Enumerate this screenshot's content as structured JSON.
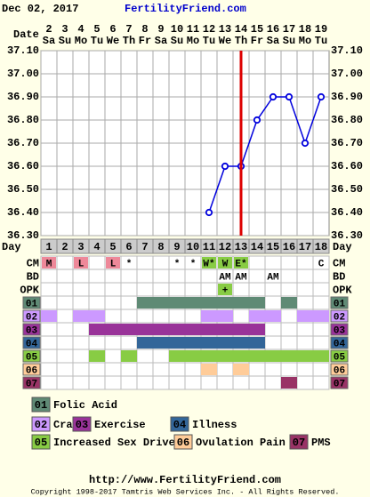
{
  "chart_data": {
    "type": "line",
    "title_date": "Dec 02, 2017",
    "site": "FertilityFriend.com",
    "date_label": "Date",
    "categories": [
      "2",
      "3",
      "4",
      "5",
      "6",
      "7",
      "8",
      "9",
      "10",
      "11",
      "12",
      "13",
      "14",
      "15",
      "16",
      "17",
      "18",
      "19"
    ],
    "weekdays": [
      "Sa",
      "Su",
      "Mo",
      "Tu",
      "We",
      "Th",
      "Fr",
      "Sa",
      "Su",
      "Mo",
      "Tu",
      "We",
      "Th",
      "Fr",
      "Sa",
      "Su",
      "Mo",
      "Tu"
    ],
    "values": [
      null,
      null,
      null,
      null,
      null,
      null,
      null,
      null,
      null,
      null,
      36.4,
      36.6,
      36.6,
      36.8,
      36.9,
      36.9,
      36.7,
      36.9
    ],
    "color": "#0000dd",
    "ylim": [
      36.3,
      37.1
    ],
    "yticks": [
      {
        "value": 36.3,
        "label": "36.30"
      },
      {
        "value": 36.4,
        "label": "36.40"
      },
      {
        "value": 36.5,
        "label": "36.50"
      },
      {
        "value": 36.6,
        "label": "36.60"
      },
      {
        "value": 36.7,
        "label": "36.70"
      },
      {
        "value": 36.8,
        "label": "36.80"
      },
      {
        "value": 36.9,
        "label": "36.90"
      },
      {
        "value": 37.0,
        "label": "37.00"
      },
      {
        "value": 37.1,
        "label": "37.10"
      }
    ],
    "grid": true,
    "ovulation_day": 13,
    "ovulation_color": "#dd0000"
  },
  "table": {
    "day_label": "Day",
    "days": [
      1,
      2,
      3,
      4,
      5,
      6,
      7,
      8,
      9,
      10,
      11,
      12,
      13,
      14,
      15,
      16,
      17,
      18
    ],
    "rows": [
      {
        "label": "CM",
        "cells": [
          "M",
          null,
          "L",
          null,
          "L",
          "*",
          null,
          null,
          "*",
          "*",
          "W*",
          "W",
          "E*",
          null,
          null,
          null,
          null,
          "C"
        ],
        "cell_colors": [
          "#ee8899",
          null,
          "#ee8899",
          null,
          "#ee8899",
          null,
          null,
          null,
          null,
          null,
          "#88cc44",
          "#88cc44",
          "#88cc44",
          null,
          null,
          null,
          null,
          null
        ]
      },
      {
        "label": "BD",
        "cells": [
          null,
          null,
          null,
          null,
          null,
          null,
          null,
          null,
          null,
          null,
          null,
          "AM",
          "AM",
          null,
          "AM",
          null,
          null,
          null
        ]
      },
      {
        "label": "OPK",
        "cells": [
          null,
          null,
          null,
          null,
          null,
          null,
          null,
          null,
          null,
          null,
          null,
          "+",
          null,
          null,
          null,
          null,
          null,
          null
        ],
        "cell_colors": [
          null,
          null,
          null,
          null,
          null,
          null,
          null,
          null,
          null,
          null,
          null,
          "#88cc44",
          null,
          null,
          null,
          null,
          null,
          null
        ]
      }
    ]
  },
  "symptoms": [
    {
      "code": "01",
      "name": "Folic Acid",
      "color": "#5f8a75",
      "days": [
        7,
        8,
        9,
        10,
        11,
        12,
        13,
        14,
        16
      ]
    },
    {
      "code": "02",
      "name": "Cramps",
      "color": "#cc99ff",
      "days": [
        1,
        3,
        4,
        11,
        12,
        14,
        15,
        17,
        18
      ]
    },
    {
      "code": "03",
      "name": "Exercise",
      "color": "#993399",
      "days": [
        4,
        5,
        6,
        7,
        8,
        9,
        10,
        11,
        12,
        13,
        14
      ]
    },
    {
      "code": "04",
      "name": "Illness",
      "color": "#336699",
      "days": [
        7,
        8,
        9,
        10,
        11,
        12,
        13,
        14
      ]
    },
    {
      "code": "05",
      "name": "Increased Sex Drive",
      "color": "#88cc44",
      "days": [
        4,
        6,
        9,
        10,
        11,
        12,
        13,
        14,
        15,
        16,
        17,
        18
      ]
    },
    {
      "code": "06",
      "name": "Ovulation Pain",
      "color": "#ffcc99",
      "days": [
        11,
        13
      ]
    },
    {
      "code": "07",
      "name": "PMS",
      "color": "#993366",
      "days": [
        16
      ]
    }
  ],
  "footer": {
    "url": "http://www.FertilityFriend.com",
    "copyright": "Copyright 1998-2017 Tamtris Web Services Inc. - All Rights Reserved."
  }
}
